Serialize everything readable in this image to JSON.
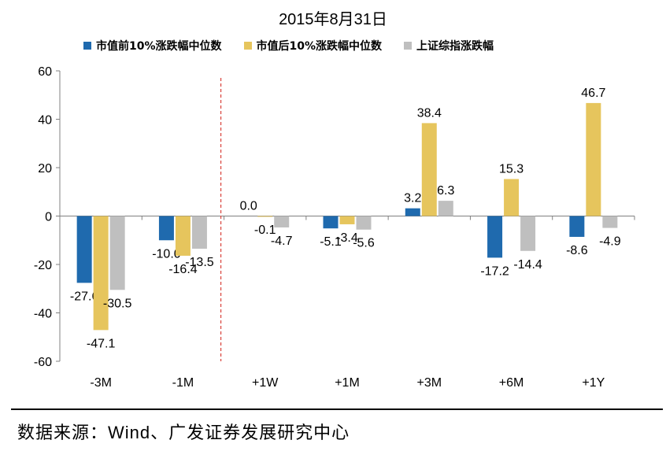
{
  "chart_data": {
    "type": "bar",
    "title": "2015年8月31日",
    "categories": [
      "-3M",
      "-1M",
      "+1W",
      "+1M",
      "+3M",
      "+6M",
      "+1Y"
    ],
    "series": [
      {
        "name": "市值前10%涨跌幅中位数",
        "color": "#1F6AAE",
        "values": [
          -27.6,
          -10.0,
          0.0,
          -5.1,
          3.2,
          -17.2,
          -8.6
        ],
        "labels": [
          "-27.6",
          "-10.0",
          "0.0",
          "-5.1",
          "3.2",
          "-17.2",
          "-8.6"
        ]
      },
      {
        "name": "市值后10%涨跌幅中位数",
        "color": "#E6C55D",
        "values": [
          -47.1,
          -16.4,
          -0.1,
          -3.4,
          38.4,
          15.3,
          46.7
        ],
        "labels": [
          "-47.1",
          "-16.4",
          "-0.1",
          "-3.4",
          "38.4",
          "15.3",
          "46.7"
        ]
      },
      {
        "name": "上证综指涨跌幅",
        "color": "#BFBFBF",
        "values": [
          -30.5,
          -13.5,
          -4.7,
          -5.6,
          6.3,
          -14.4,
          -4.9
        ],
        "labels": [
          "-30.5",
          "-13.5",
          "-4.7",
          "-5.6",
          "6.3",
          "-14.4",
          "-4.9"
        ]
      }
    ],
    "yticks": [
      "60",
      "40",
      "20",
      "0",
      "-20",
      "-40",
      "-60"
    ],
    "ylim": [
      -60,
      60
    ],
    "xlabel": "",
    "ylabel": "",
    "grid": false,
    "legend_position": "top",
    "annotation": "dashed red vertical line between -1M and +1W"
  },
  "footer": {
    "source_prefix": "数据来源：",
    "source_latin": "Wind",
    "source_suffix": "、广发证券发展研究中心"
  }
}
